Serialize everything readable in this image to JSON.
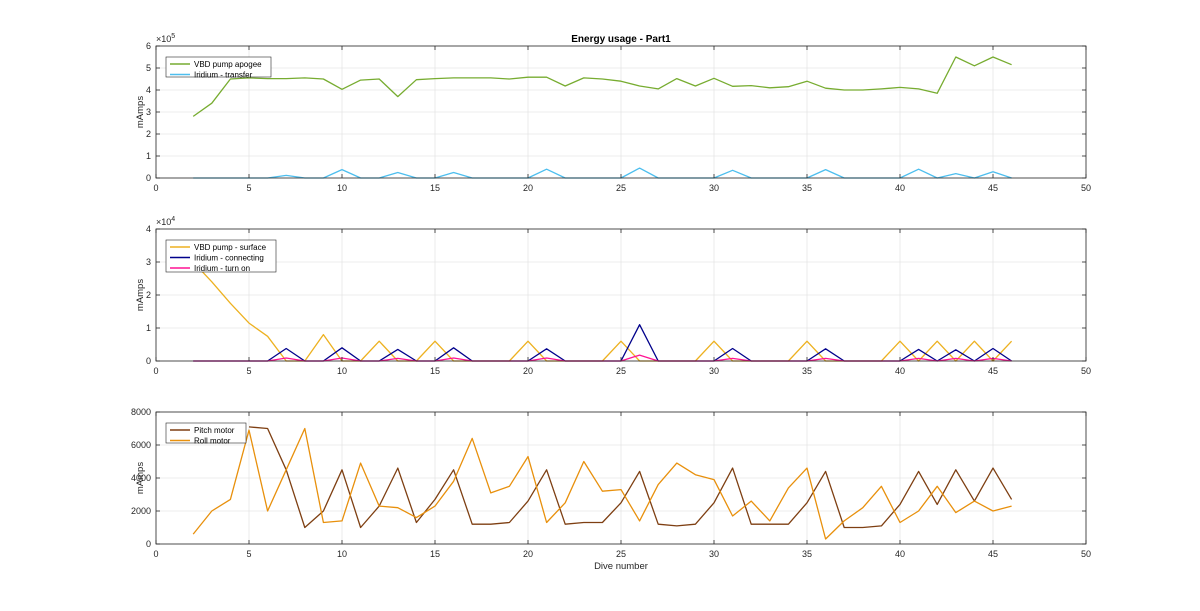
{
  "chart_data": [
    {
      "type": "line",
      "title": "Energy usage - Part1",
      "xlabel": "",
      "ylabel": "mAmps",
      "xlim": [
        0,
        50
      ],
      "ylim": [
        0,
        600000
      ],
      "xticks": [
        0,
        5,
        10,
        15,
        20,
        25,
        30,
        35,
        40,
        45,
        50
      ],
      "yticks": [
        0,
        100000,
        200000,
        300000,
        400000,
        500000,
        600000
      ],
      "ytick_labels": [
        "0",
        "1",
        "2",
        "3",
        "4",
        "5",
        "6"
      ],
      "exponent_mantissa": "×10",
      "exponent_power": "5",
      "grid": true,
      "legend_position": "top-left",
      "series": [
        {
          "name": "VBD pump apogee",
          "color": "#77ac30",
          "x": [
            2,
            3,
            4,
            5,
            6,
            7,
            8,
            9,
            10,
            11,
            12,
            13,
            14,
            15,
            16,
            17,
            18,
            19,
            20,
            21,
            22,
            23,
            24,
            25,
            26,
            27,
            28,
            29,
            30,
            31,
            32,
            33,
            34,
            35,
            36,
            37,
            38,
            39,
            40,
            41,
            42,
            43,
            44,
            45,
            46
          ],
          "y": [
            280000,
            340000,
            450000,
            455000,
            452000,
            452000,
            455000,
            450000,
            403000,
            445000,
            450000,
            370000,
            447000,
            452000,
            455000,
            455000,
            455000,
            450000,
            458000,
            458000,
            418000,
            455000,
            450000,
            440000,
            418000,
            405000,
            452000,
            418000,
            453000,
            417000,
            420000,
            410000,
            415000,
            440000,
            408000,
            400000,
            400000,
            405000,
            412000,
            405000,
            385000,
            550000,
            510000,
            550000,
            515000
          ]
        },
        {
          "name": "Iridium - transfer",
          "color": "#4dbeee",
          "x": [
            2,
            3,
            4,
            5,
            6,
            7,
            8,
            9,
            10,
            11,
            12,
            13,
            14,
            15,
            16,
            17,
            18,
            19,
            20,
            21,
            22,
            23,
            24,
            25,
            26,
            27,
            28,
            29,
            30,
            31,
            32,
            33,
            34,
            35,
            36,
            37,
            38,
            39,
            40,
            41,
            42,
            43,
            44,
            45,
            46
          ],
          "y": [
            0,
            0,
            0,
            0,
            0,
            12000,
            0,
            0,
            38000,
            0,
            0,
            25000,
            0,
            0,
            25000,
            0,
            0,
            0,
            0,
            40000,
            0,
            0,
            0,
            0,
            45000,
            0,
            0,
            0,
            0,
            35000,
            0,
            0,
            0,
            0,
            38000,
            0,
            0,
            0,
            0,
            40000,
            0,
            20000,
            0,
            28000,
            0
          ]
        }
      ]
    },
    {
      "type": "line",
      "title": "",
      "xlabel": "",
      "ylabel": "mAmps",
      "xlim": [
        0,
        50
      ],
      "ylim": [
        0,
        40000
      ],
      "xticks": [
        0,
        5,
        10,
        15,
        20,
        25,
        30,
        35,
        40,
        45,
        50
      ],
      "yticks": [
        0,
        10000,
        20000,
        30000,
        40000
      ],
      "ytick_labels": [
        "0",
        "1",
        "2",
        "3",
        "4"
      ],
      "exponent_mantissa": "×10",
      "exponent_power": "4",
      "grid": true,
      "legend_position": "top-left",
      "series": [
        {
          "name": "VBD pump - surface",
          "color": "#edb120",
          "x": [
            2,
            3,
            4,
            5,
            6,
            7,
            8,
            9,
            10,
            11,
            12,
            13,
            14,
            15,
            16,
            17,
            18,
            19,
            20,
            21,
            22,
            23,
            24,
            25,
            26,
            27,
            28,
            29,
            30,
            31,
            32,
            33,
            34,
            35,
            36,
            37,
            38,
            39,
            40,
            41,
            42,
            43,
            44,
            45,
            46
          ],
          "y": [
            30000,
            24000,
            17500,
            11500,
            7500,
            0,
            0,
            8000,
            0,
            0,
            6000,
            0,
            0,
            6000,
            0,
            0,
            0,
            0,
            6000,
            0,
            0,
            0,
            0,
            6000,
            0,
            0,
            0,
            0,
            6000,
            0,
            0,
            0,
            0,
            6000,
            0,
            0,
            0,
            0,
            6000,
            0,
            6000,
            0,
            6000,
            0,
            6000
          ]
        },
        {
          "name": "Iridium - connecting",
          "color": "#00008b",
          "x": [
            2,
            3,
            4,
            5,
            6,
            7,
            8,
            9,
            10,
            11,
            12,
            13,
            14,
            15,
            16,
            17,
            18,
            19,
            20,
            21,
            22,
            23,
            24,
            25,
            26,
            27,
            28,
            29,
            30,
            31,
            32,
            33,
            34,
            35,
            36,
            37,
            38,
            39,
            40,
            41,
            42,
            43,
            44,
            45,
            46
          ],
          "y": [
            0,
            0,
            0,
            0,
            0,
            3800,
            0,
            0,
            4000,
            0,
            0,
            3500,
            0,
            0,
            4000,
            0,
            0,
            0,
            0,
            3700,
            0,
            0,
            0,
            0,
            11000,
            0,
            0,
            0,
            0,
            3800,
            0,
            0,
            0,
            0,
            3700,
            0,
            0,
            0,
            0,
            3500,
            0,
            3400,
            0,
            3800,
            0
          ]
        },
        {
          "name": "Iridium - turn on",
          "color": "#ff1493",
          "x": [
            2,
            3,
            4,
            5,
            6,
            7,
            8,
            9,
            10,
            11,
            12,
            13,
            14,
            15,
            16,
            17,
            18,
            19,
            20,
            21,
            22,
            23,
            24,
            25,
            26,
            27,
            28,
            29,
            30,
            31,
            32,
            33,
            34,
            35,
            36,
            37,
            38,
            39,
            40,
            41,
            42,
            43,
            44,
            45,
            46
          ],
          "y": [
            0,
            0,
            0,
            0,
            0,
            900,
            0,
            0,
            900,
            0,
            0,
            800,
            0,
            0,
            900,
            0,
            0,
            0,
            0,
            900,
            0,
            0,
            0,
            0,
            1800,
            0,
            0,
            0,
            0,
            800,
            0,
            0,
            0,
            0,
            800,
            0,
            0,
            0,
            0,
            800,
            0,
            800,
            0,
            800,
            0
          ]
        }
      ]
    },
    {
      "type": "line",
      "title": "",
      "xlabel": "Dive number",
      "ylabel": "mAmps",
      "xlim": [
        0,
        50
      ],
      "ylim": [
        0,
        8000
      ],
      "xticks": [
        0,
        5,
        10,
        15,
        20,
        25,
        30,
        35,
        40,
        45,
        50
      ],
      "yticks": [
        0,
        2000,
        4000,
        6000,
        8000
      ],
      "ytick_labels": [
        "0",
        "2000",
        "4000",
        "6000",
        "8000"
      ],
      "grid": true,
      "legend_position": "top-left",
      "series": [
        {
          "name": "Pitch motor",
          "color": "#7e3f12",
          "x": [
            5,
            6,
            7,
            8,
            9,
            10,
            11,
            12,
            13,
            14,
            15,
            16,
            17,
            18,
            19,
            20,
            21,
            22,
            23,
            24,
            25,
            26,
            27,
            28,
            29,
            30,
            31,
            32,
            33,
            34,
            35,
            36,
            37,
            38,
            39,
            40,
            41,
            42,
            43,
            44,
            45,
            46
          ],
          "y": [
            7100,
            7000,
            4500,
            1000,
            2000,
            4500,
            1000,
            2300,
            4600,
            1300,
            2700,
            4500,
            1200,
            1200,
            1300,
            2600,
            4500,
            1200,
            1300,
            1300,
            2500,
            4400,
            1200,
            1100,
            1200,
            2500,
            4600,
            1200,
            1200,
            1200,
            2500,
            4400,
            1000,
            1000,
            1100,
            2400,
            4400,
            2400,
            4500,
            2600,
            4600,
            2700
          ]
        },
        {
          "name": "Roll motor",
          "color": "#e8900c",
          "x": [
            2,
            3,
            4,
            5,
            6,
            7,
            8,
            9,
            10,
            11,
            12,
            13,
            14,
            15,
            16,
            17,
            18,
            19,
            20,
            21,
            22,
            23,
            24,
            25,
            26,
            27,
            28,
            29,
            30,
            31,
            32,
            33,
            34,
            35,
            36,
            37,
            38,
            39,
            40,
            41,
            42,
            43,
            44,
            45,
            46
          ],
          "y": [
            600,
            2000,
            2700,
            6900,
            2000,
            4500,
            7000,
            1300,
            1400,
            4900,
            2300,
            2200,
            1600,
            2300,
            3800,
            6400,
            3100,
            3500,
            5300,
            1300,
            2500,
            5000,
            3200,
            3300,
            1400,
            3600,
            4900,
            4200,
            3900,
            1700,
            2600,
            1400,
            3400,
            4600,
            300,
            1400,
            2200,
            3500,
            1300,
            2000,
            3500,
            1900,
            2600,
            2000,
            2300
          ]
        }
      ]
    }
  ]
}
